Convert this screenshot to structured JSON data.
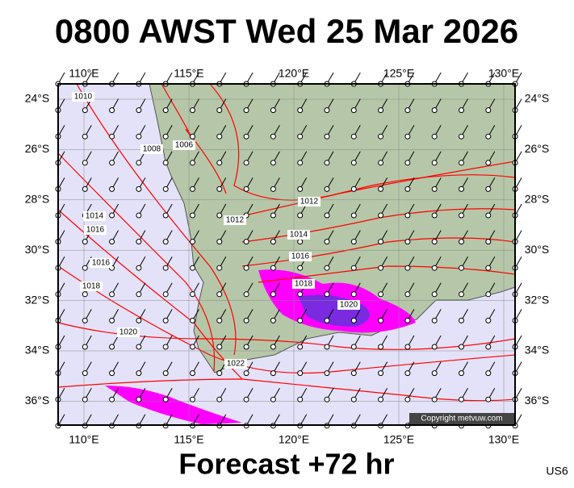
{
  "header": {
    "title": "0800 AWST Wed 25 Mar 2026"
  },
  "footer": {
    "subtitle": "Forecast +72 hr",
    "code": "US6"
  },
  "map": {
    "lon_ticks": [
      {
        "value": 110,
        "label": "110°E"
      },
      {
        "value": 115,
        "label": "115°E"
      },
      {
        "value": 120,
        "label": "120°E"
      },
      {
        "value": 125,
        "label": "125°E"
      },
      {
        "value": 130,
        "label": "130°E"
      }
    ],
    "lat_ticks": [
      {
        "value": 24,
        "label": "24°S"
      },
      {
        "value": 26,
        "label": "26°S"
      },
      {
        "value": 28,
        "label": "28°S"
      },
      {
        "value": 30,
        "label": "30°S"
      },
      {
        "value": 32,
        "label": "32°S"
      },
      {
        "value": 34,
        "label": "34°S"
      },
      {
        "value": 36,
        "label": "36°S"
      }
    ],
    "isobar_labels": [
      "1010",
      "1008",
      "1006",
      "1012",
      "1012",
      "1014",
      "1014",
      "1016",
      "1016",
      "1016",
      "1018",
      "1018",
      "1020",
      "1020",
      "1022"
    ],
    "copyright": "Copyright metvuw.com"
  }
}
